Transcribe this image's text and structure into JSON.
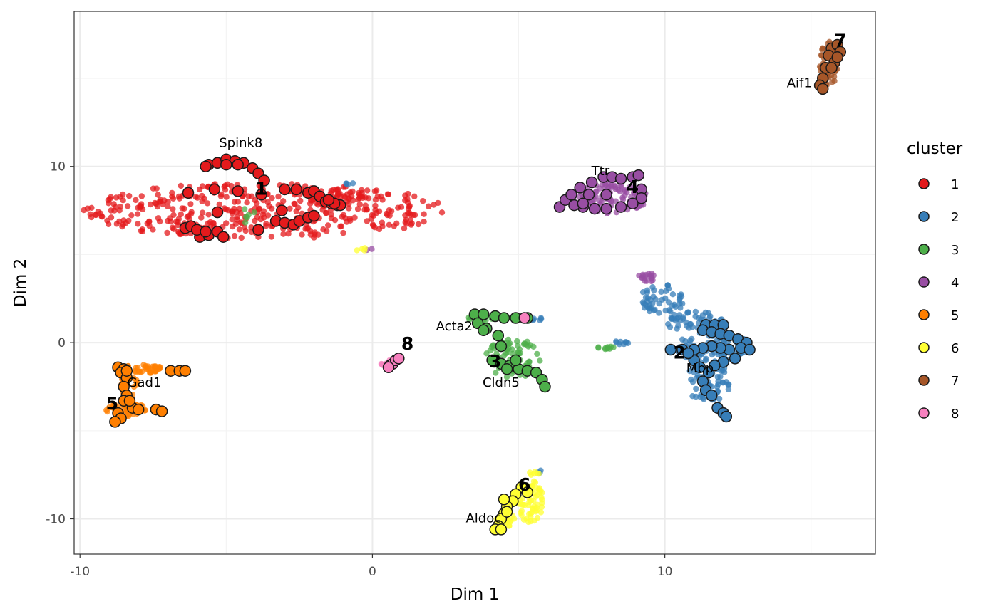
{
  "chart_data": {
    "type": "scatter",
    "title": "",
    "xlabel": "Dim 1",
    "ylabel": "Dim 2",
    "xlim": [
      -10.2,
      17.2
    ],
    "ylim": [
      -12,
      18.8
    ],
    "x_ticks": [
      -10,
      0,
      10
    ],
    "y_ticks": [
      -10,
      0,
      10
    ],
    "x_tick_labels": [
      "-10",
      "0",
      "10"
    ],
    "y_tick_labels": [
      "-10",
      "0",
      "10"
    ],
    "grid": true,
    "legend": {
      "title": "cluster",
      "position": "right"
    },
    "series": [
      {
        "name": "1",
        "color": "#E41A1C",
        "background_regions": [
          {
            "cx": -3.7,
            "cy": 7.5,
            "rx": 6.2,
            "ry": 1.6,
            "n": 420
          },
          {
            "cx": -1.3,
            "cy": 8.3,
            "rx": 1.0,
            "ry": 0.45,
            "n": 40
          }
        ],
        "highlighted": [
          [
            -5.6,
            10.1
          ],
          [
            -5.3,
            10.2
          ],
          [
            -5.0,
            10.4
          ],
          [
            -4.7,
            10.3
          ],
          [
            -4.4,
            10.2
          ],
          [
            -4.1,
            9.9
          ],
          [
            -3.9,
            9.6
          ],
          [
            -3.7,
            9.2
          ],
          [
            -5.7,
            10.0
          ],
          [
            -5.0,
            10.1
          ],
          [
            -4.6,
            10.1
          ],
          [
            -6.3,
            8.5
          ],
          [
            -5.4,
            8.7
          ],
          [
            -4.6,
            8.6
          ],
          [
            -3.8,
            8.4
          ],
          [
            -3.0,
            8.7
          ],
          [
            -2.6,
            8.7
          ],
          [
            -2.2,
            8.5
          ],
          [
            -2.0,
            8.6
          ],
          [
            -1.8,
            8.3
          ],
          [
            -1.6,
            8.0
          ],
          [
            -1.4,
            7.9
          ],
          [
            -1.2,
            7.8
          ],
          [
            -1.1,
            7.8
          ],
          [
            -1.3,
            7.9
          ],
          [
            -1.5,
            8.1
          ],
          [
            -3.1,
            7.5
          ],
          [
            -3.3,
            6.9
          ],
          [
            -3.0,
            6.8
          ],
          [
            -2.7,
            6.7
          ],
          [
            -2.5,
            6.9
          ],
          [
            -2.2,
            7.1
          ],
          [
            -2.0,
            7.2
          ],
          [
            -3.9,
            6.4
          ],
          [
            -5.3,
            7.4
          ],
          [
            -5.9,
            6.0
          ],
          [
            -5.6,
            6.1
          ],
          [
            -5.3,
            6.3
          ],
          [
            -5.1,
            6.0
          ],
          [
            -6.4,
            6.5
          ],
          [
            -6.2,
            6.6
          ],
          [
            -6.0,
            6.4
          ],
          [
            -5.7,
            6.3
          ]
        ]
      },
      {
        "name": "2",
        "color": "#377EB8",
        "background_regions": [
          {
            "cx": 9.9,
            "cy": 2.4,
            "rx": 0.8,
            "ry": 0.9,
            "n": 50
          },
          {
            "cx": 11.0,
            "cy": 1.2,
            "rx": 1.0,
            "ry": 0.6,
            "n": 50
          },
          {
            "cx": 11.6,
            "cy": -0.2,
            "rx": 1.3,
            "ry": 0.9,
            "n": 90
          },
          {
            "cx": 11.5,
            "cy": -2.2,
            "rx": 0.8,
            "ry": 1.2,
            "n": 60
          },
          {
            "cx": 8.5,
            "cy": 0.0,
            "rx": 0.3,
            "ry": 0.1,
            "n": 8
          },
          {
            "cx": 5.6,
            "cy": 1.35,
            "rx": 0.3,
            "ry": 0.1,
            "n": 6
          },
          {
            "cx": -0.8,
            "cy": 9.05,
            "rx": 0.15,
            "ry": 0.1,
            "n": 4
          },
          {
            "cx": 5.8,
            "cy": -7.35,
            "rx": 0.2,
            "ry": 0.1,
            "n": 4
          }
        ],
        "highlighted": [
          [
            11.4,
            1.0
          ],
          [
            11.7,
            1.0
          ],
          [
            12.0,
            1.0
          ],
          [
            11.3,
            0.7
          ],
          [
            11.6,
            0.6
          ],
          [
            11.9,
            0.5
          ],
          [
            12.2,
            0.4
          ],
          [
            12.5,
            0.2
          ],
          [
            12.8,
            0.0
          ],
          [
            12.6,
            -0.3
          ],
          [
            12.9,
            -0.4
          ],
          [
            12.2,
            -0.4
          ],
          [
            11.9,
            -0.3
          ],
          [
            11.6,
            -0.2
          ],
          [
            11.3,
            -0.3
          ],
          [
            11.0,
            -0.4
          ],
          [
            10.6,
            -0.4
          ],
          [
            10.2,
            -0.4
          ],
          [
            11.0,
            -1.0
          ],
          [
            11.2,
            -1.4
          ],
          [
            11.5,
            -1.7
          ],
          [
            11.3,
            -2.2
          ],
          [
            11.4,
            -2.7
          ],
          [
            11.6,
            -3.0
          ],
          [
            11.8,
            -3.7
          ],
          [
            12.0,
            -4.0
          ],
          [
            12.1,
            -4.2
          ],
          [
            12.4,
            -0.9
          ],
          [
            12.0,
            -1.1
          ],
          [
            11.7,
            -1.3
          ],
          [
            10.8,
            -0.6
          ]
        ]
      },
      {
        "name": "3",
        "color": "#4DAF4A",
        "background_regions": [
          {
            "cx": 4.8,
            "cy": -0.9,
            "rx": 1.0,
            "ry": 1.1,
            "n": 70
          },
          {
            "cx": 3.6,
            "cy": 1.4,
            "rx": 0.6,
            "ry": 0.15,
            "n": 14
          },
          {
            "cx": 8.0,
            "cy": -0.3,
            "rx": 0.3,
            "ry": 0.1,
            "n": 10
          },
          {
            "cx": -4.3,
            "cy": 7.1,
            "rx": 0.5,
            "ry": 0.5,
            "n": 6
          }
        ],
        "highlighted": [
          [
            3.5,
            1.6
          ],
          [
            3.8,
            1.6
          ],
          [
            4.2,
            1.5
          ],
          [
            4.5,
            1.4
          ],
          [
            4.9,
            1.4
          ],
          [
            5.3,
            1.4
          ],
          [
            3.6,
            1.1
          ],
          [
            3.9,
            0.8
          ],
          [
            4.3,
            0.4
          ],
          [
            3.8,
            0.7
          ],
          [
            4.4,
            -0.2
          ],
          [
            4.1,
            -1.0
          ],
          [
            4.4,
            -1.2
          ],
          [
            4.7,
            -1.3
          ],
          [
            5.0,
            -1.5
          ],
          [
            5.3,
            -1.6
          ],
          [
            5.6,
            -1.7
          ],
          [
            5.8,
            -2.1
          ],
          [
            5.9,
            -2.5
          ],
          [
            4.6,
            -1.5
          ],
          [
            4.9,
            -1.0
          ]
        ]
      },
      {
        "name": "4",
        "color": "#984EA3",
        "background_regions": [
          {
            "cx": 8.2,
            "cy": 8.2,
            "rx": 1.2,
            "ry": 0.9,
            "n": 110
          },
          {
            "cx": 9.4,
            "cy": 3.7,
            "rx": 0.3,
            "ry": 0.3,
            "n": 18
          },
          {
            "cx": -0.1,
            "cy": 5.3,
            "rx": 0.1,
            "ry": 0.1,
            "n": 2
          }
        ],
        "highlighted": [
          [
            6.4,
            7.7
          ],
          [
            6.6,
            8.1
          ],
          [
            6.8,
            8.4
          ],
          [
            7.1,
            8.8
          ],
          [
            7.5,
            9.1
          ],
          [
            7.9,
            9.4
          ],
          [
            8.2,
            9.4
          ],
          [
            8.5,
            9.3
          ],
          [
            8.9,
            9.4
          ],
          [
            9.1,
            9.5
          ],
          [
            9.2,
            8.7
          ],
          [
            9.2,
            8.2
          ],
          [
            8.9,
            7.9
          ],
          [
            8.5,
            7.7
          ],
          [
            8.0,
            7.6
          ],
          [
            7.6,
            7.6
          ],
          [
            7.2,
            7.7
          ],
          [
            6.9,
            7.8
          ],
          [
            7.4,
            8.4
          ],
          [
            8.0,
            8.4
          ],
          [
            7.2,
            7.9
          ]
        ]
      },
      {
        "name": "5",
        "color": "#FF7F00",
        "background_regions": [
          {
            "cx": -8.0,
            "cy": -1.5,
            "rx": 0.9,
            "ry": 0.25,
            "n": 40
          },
          {
            "cx": -8.4,
            "cy": -3.8,
            "rx": 0.7,
            "ry": 0.4,
            "n": 40
          },
          {
            "cx": -8.3,
            "cy": -2.4,
            "rx": 0.35,
            "ry": 0.6,
            "n": 18
          }
        ],
        "highlighted": [
          [
            -8.7,
            -1.4
          ],
          [
            -8.5,
            -1.5
          ],
          [
            -8.6,
            -1.7
          ],
          [
            -8.4,
            -2.0
          ],
          [
            -8.5,
            -2.5
          ],
          [
            -8.4,
            -3.0
          ],
          [
            -8.5,
            -3.3
          ],
          [
            -8.2,
            -3.7
          ],
          [
            -8.0,
            -3.8
          ],
          [
            -8.7,
            -4.0
          ],
          [
            -8.6,
            -4.3
          ],
          [
            -8.8,
            -4.5
          ],
          [
            -7.4,
            -3.8
          ],
          [
            -7.2,
            -3.9
          ],
          [
            -6.9,
            -1.6
          ],
          [
            -6.6,
            -1.6
          ],
          [
            -6.4,
            -1.6
          ],
          [
            -8.4,
            -1.6
          ],
          [
            -8.3,
            -3.3
          ]
        ]
      },
      {
        "name": "6",
        "color": "#FFFF33",
        "background_regions": [
          {
            "cx": 5.4,
            "cy": -9.0,
            "rx": 0.45,
            "ry": 1.2,
            "n": 60
          },
          {
            "cx": 4.6,
            "cy": -10.1,
            "rx": 0.4,
            "ry": 0.35,
            "n": 16
          },
          {
            "cx": 5.5,
            "cy": -7.4,
            "rx": 0.2,
            "ry": 0.15,
            "n": 6
          },
          {
            "cx": -0.4,
            "cy": 5.3,
            "rx": 0.2,
            "ry": 0.1,
            "n": 4
          }
        ],
        "highlighted": [
          [
            5.1,
            -8.2
          ],
          [
            5.3,
            -8.5
          ],
          [
            4.9,
            -8.6
          ],
          [
            4.8,
            -9.0
          ],
          [
            4.6,
            -9.3
          ],
          [
            4.5,
            -9.7
          ],
          [
            4.4,
            -10.0
          ],
          [
            4.3,
            -10.4
          ],
          [
            4.2,
            -10.6
          ],
          [
            4.4,
            -10.6
          ],
          [
            4.5,
            -8.9
          ],
          [
            4.6,
            -9.6
          ]
        ]
      },
      {
        "name": "7",
        "color": "#A65628",
        "background_regions": [
          {
            "cx": 15.6,
            "cy": 15.8,
            "rx": 0.3,
            "ry": 1.3,
            "n": 50
          }
        ],
        "highlighted": [
          [
            15.7,
            16.7
          ],
          [
            15.9,
            16.9
          ],
          [
            16.0,
            16.5
          ],
          [
            15.6,
            16.3
          ],
          [
            15.8,
            15.9
          ],
          [
            15.5,
            15.6
          ],
          [
            15.4,
            15.0
          ],
          [
            15.3,
            14.6
          ],
          [
            15.4,
            14.4
          ],
          [
            15.9,
            16.2
          ],
          [
            15.7,
            15.6
          ]
        ]
      },
      {
        "name": "8",
        "color": "#F781BF",
        "background_regions": [
          {
            "cx": 0.6,
            "cy": -1.2,
            "rx": 0.3,
            "ry": 0.2,
            "n": 12
          }
        ],
        "highlighted": [
          [
            0.6,
            -1.3
          ],
          [
            0.7,
            -1.2
          ],
          [
            0.8,
            -1.0
          ],
          [
            0.9,
            -0.9
          ],
          [
            0.55,
            -1.4
          ],
          [
            5.2,
            1.4
          ]
        ]
      }
    ],
    "cluster_labels": [
      {
        "text": "1",
        "x": -3.8,
        "y": 8.4
      },
      {
        "text": "2",
        "x": 10.5,
        "y": -0.9
      },
      {
        "text": "3",
        "x": 4.2,
        "y": -1.4
      },
      {
        "text": "4",
        "x": 8.9,
        "y": 8.5
      },
      {
        "text": "5",
        "x": -8.9,
        "y": -3.8
      },
      {
        "text": "6",
        "x": 5.2,
        "y": -8.4
      },
      {
        "text": "7",
        "x": 16.0,
        "y": 16.8
      },
      {
        "text": "8",
        "x": 1.2,
        "y": -0.4
      }
    ],
    "gene_labels": [
      {
        "text": "Spink8",
        "x": -4.5,
        "y": 11.1
      },
      {
        "text": "Ttr",
        "x": 7.8,
        "y": 9.5
      },
      {
        "text": "Acta2",
        "x": 2.8,
        "y": 0.7
      },
      {
        "text": "Cldn5",
        "x": 4.4,
        "y": -2.5
      },
      {
        "text": "Gad1",
        "x": -7.8,
        "y": -2.5
      },
      {
        "text": "Mbp",
        "x": 11.2,
        "y": -1.7
      },
      {
        "text": "Aldoc",
        "x": 3.8,
        "y": -10.2
      },
      {
        "text": "Aif1",
        "x": 14.6,
        "y": 14.5
      }
    ]
  }
}
